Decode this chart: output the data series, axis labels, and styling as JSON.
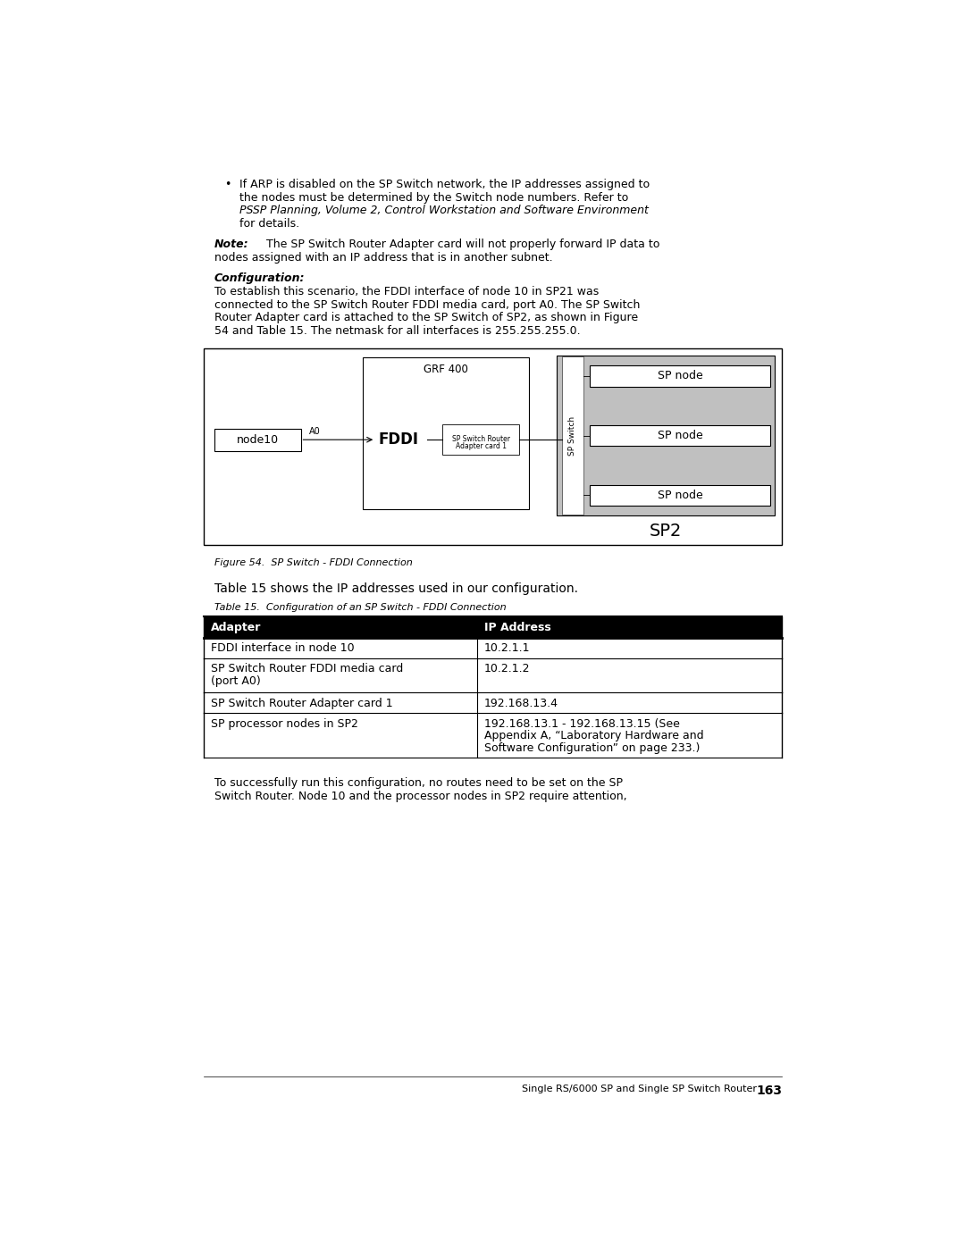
{
  "bg_color": "#ffffff",
  "page_width": 10.8,
  "page_height": 13.97,
  "text_color": "#000000",
  "bullet_line1": "If ARP is disabled on the SP Switch network, the IP addresses assigned to",
  "bullet_line2": "the nodes must be determined by the Switch node numbers. Refer to",
  "bullet_line3": "PSSP Planning, Volume 2, Control Workstation and Software Environment",
  "bullet_line4": "for details.",
  "note_bold": "Note:",
  "note_rest_line1": "The SP Switch Router Adapter card will not properly forward IP data to",
  "note_rest_line2": "nodes assigned with an IP address that is in another subnet.",
  "config_label": "Configuration:",
  "config_line1": "To establish this scenario, the FDDI interface of node 10 in SP21 was",
  "config_line2": "connected to the SP Switch Router FDDI media card, port A0. The SP Switch",
  "config_line3": "Router Adapter card is attached to the SP Switch of SP2, as shown in Figure",
  "config_line4": "54 and Table 15. The netmask for all interfaces is 255.255.255.0.",
  "figure_caption": "Figure 54.  SP Switch - FDDI Connection",
  "table_intro": "Table 15 shows the IP addresses used in our configuration.",
  "table_caption": "Table 15.  Configuration of an SP Switch - FDDI Connection",
  "table_headers": [
    "Adapter",
    "IP Address"
  ],
  "table_rows": [
    [
      "FDDI interface in node 10",
      "10.2.1.1"
    ],
    [
      "SP Switch Router FDDI media card\n(port A0)",
      "10.2.1.2"
    ],
    [
      "SP Switch Router Adapter card 1",
      "192.168.13.4"
    ],
    [
      "SP processor nodes in SP2",
      "192.168.13.1 - 192.168.13.15 (See\nAppendix A, “Laboratory Hardware and\nSoftware Configuration” on page 233.)"
    ]
  ],
  "footer_text": "Single RS/6000 SP and Single SP Switch Router",
  "footer_page": "163",
  "closing_line1": "To successfully run this configuration, no routes need to be set on the SP",
  "closing_line2": "Switch Router. Node 10 and the processor nodes in SP2 require attention,"
}
